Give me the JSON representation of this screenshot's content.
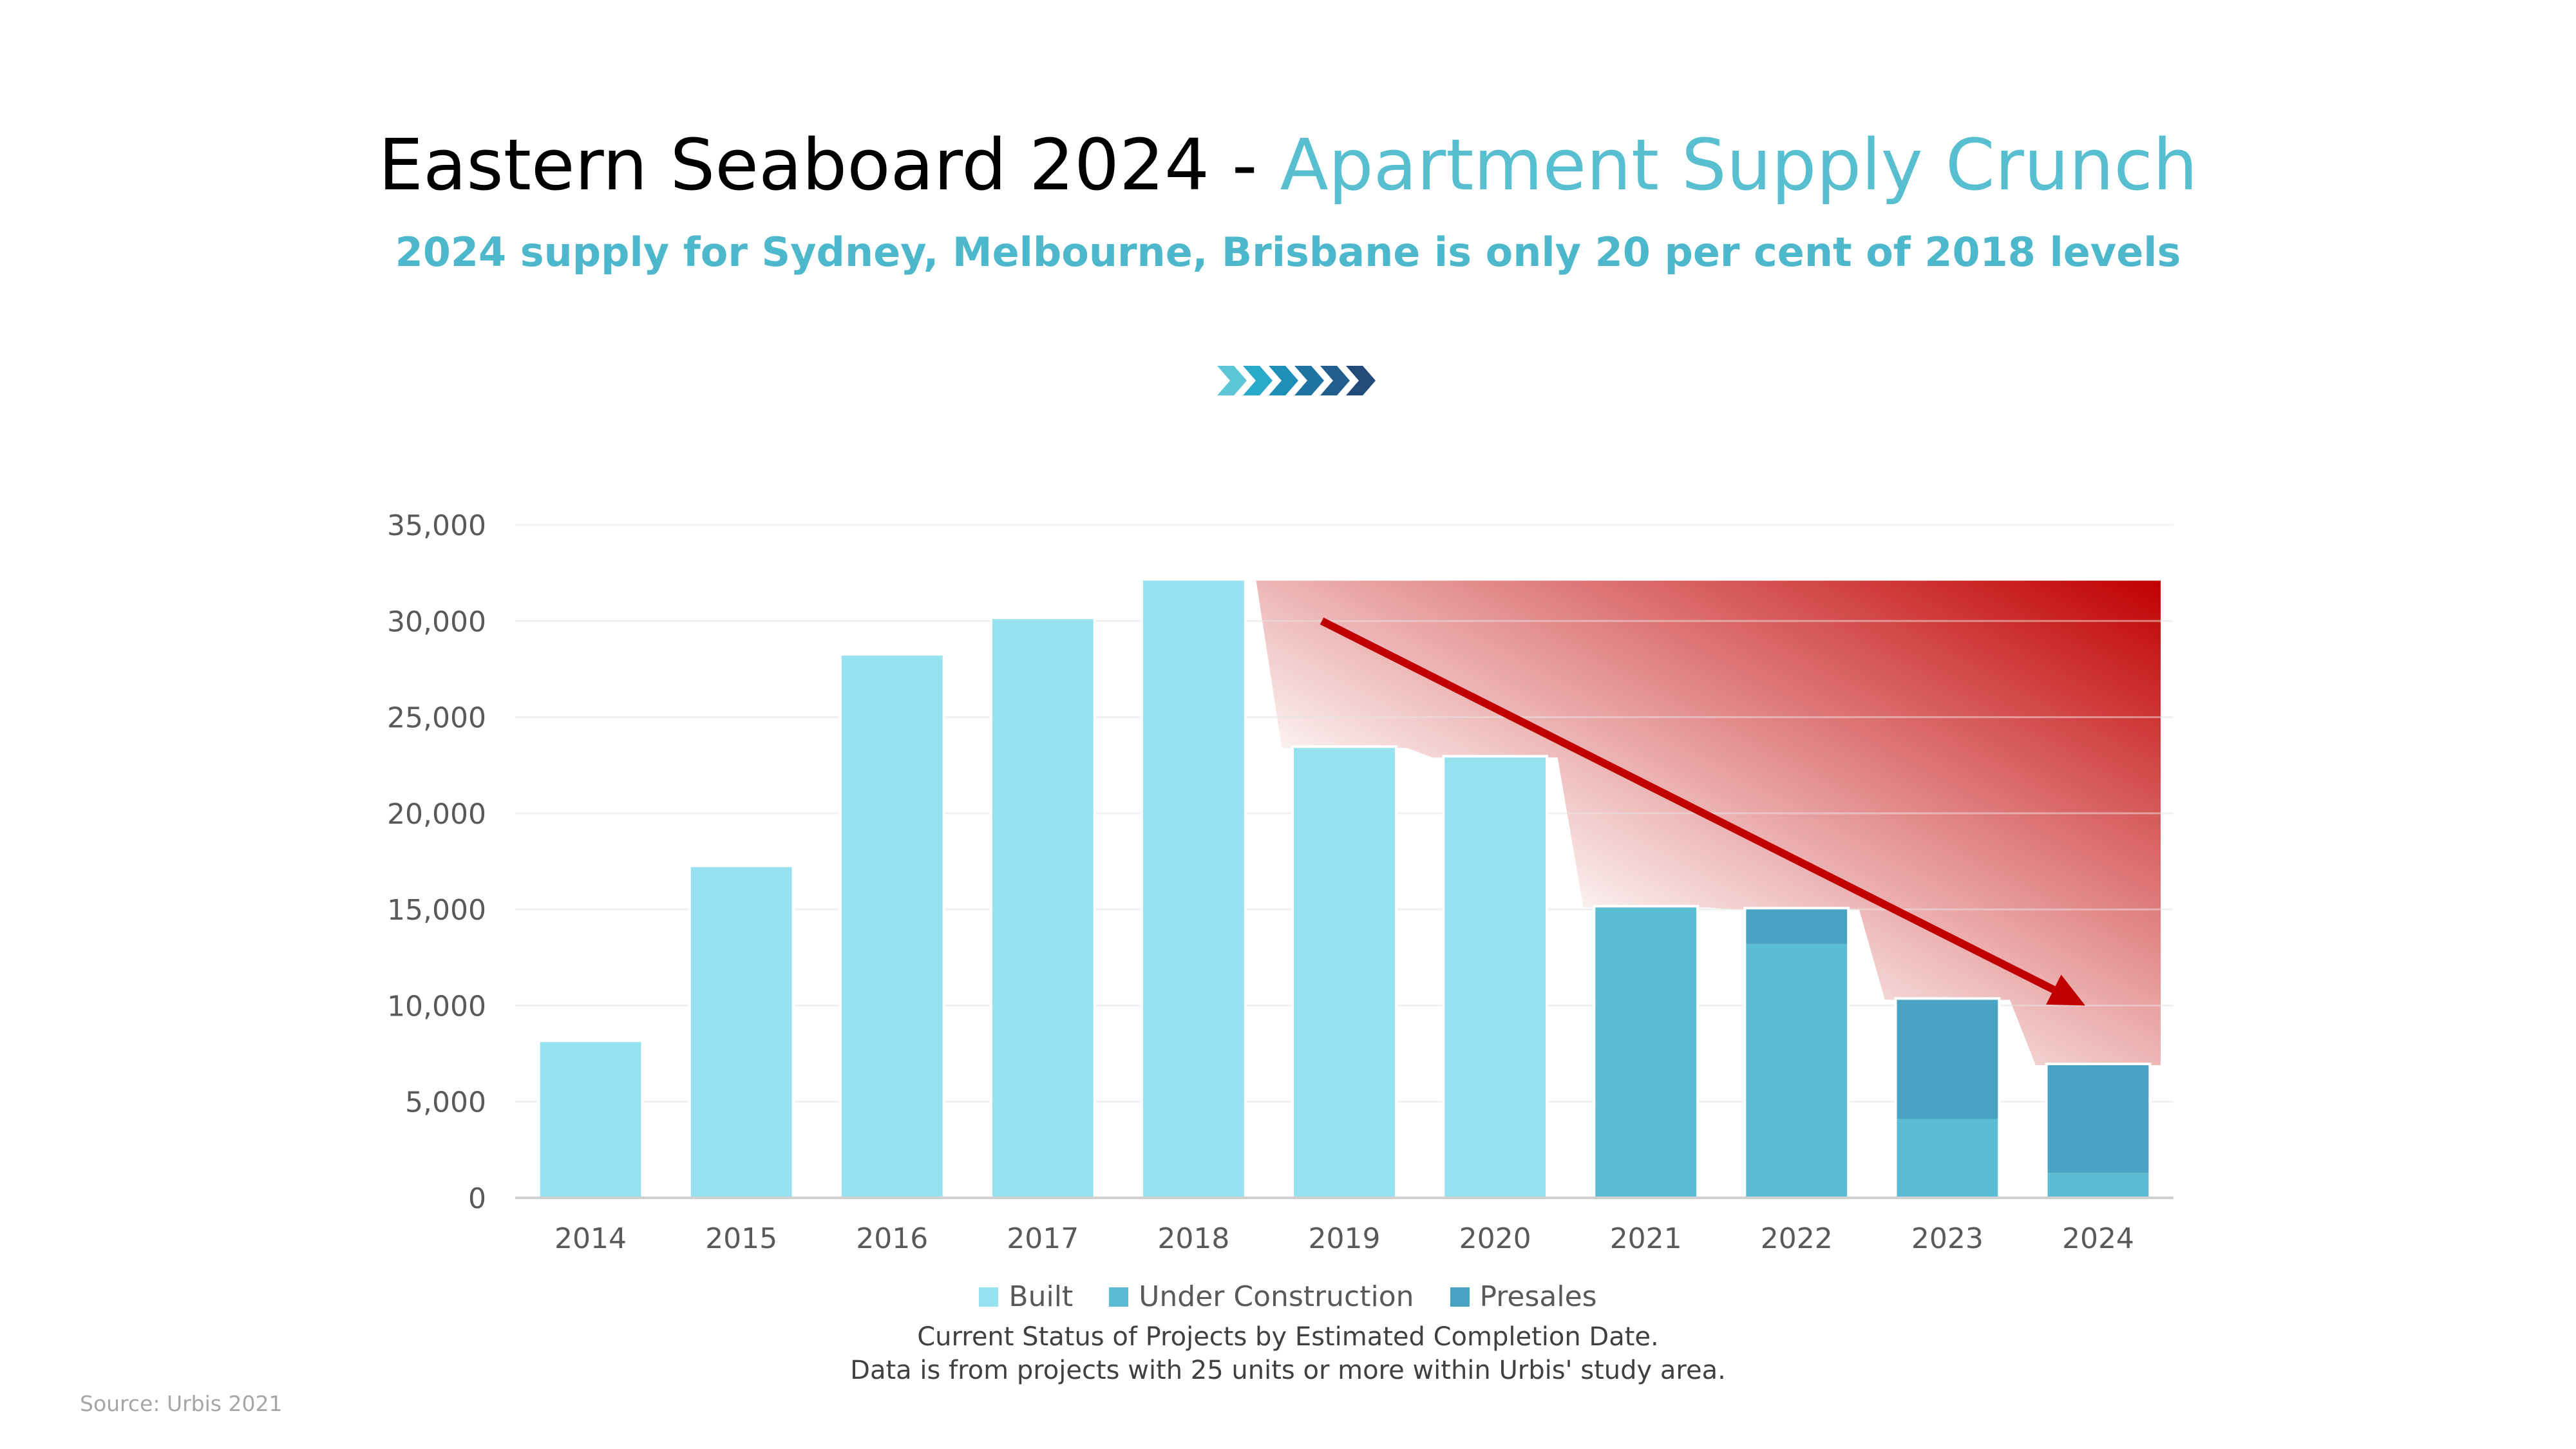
{
  "header": {
    "title_main": "Eastern Seaboard 2024 - ",
    "title_accent": "Apartment Supply Crunch",
    "subtitle": "2024 supply for Sydney, Melbourne, Brisbane is only 20 per cent of 2018 levels"
  },
  "colors": {
    "title_accent": "#57bfd0",
    "built": "#97e2f1",
    "under_construction": "#5bbdd3",
    "presales": "#48a4c2",
    "trend_arrow": "#c00000",
    "gradient_dark": "#c00000",
    "chevrons": [
      "#5cc6d6",
      "#29aacb",
      "#1d8fb8",
      "#1e73a3",
      "#215d8f",
      "#234b7a"
    ]
  },
  "footer": {
    "note_line1": "Current Status of Projects by Estimated Completion Date.",
    "note_line2": "Data is from projects with 25 units or more within Urbis' study area.",
    "source": "Source: Urbis 2021"
  },
  "chart_data": {
    "type": "bar",
    "stacked": true,
    "categories": [
      "2014",
      "2015",
      "2016",
      "2017",
      "2018",
      "2019",
      "2020",
      "2021",
      "2022",
      "2023",
      "2024"
    ],
    "series": [
      {
        "name": "Built",
        "color": "#97e2f1",
        "values": [
          8100,
          17200,
          28200,
          30100,
          32100,
          23400,
          22900,
          0,
          0,
          0,
          0
        ]
      },
      {
        "name": "Under Construction",
        "color": "#5bbdd3",
        "values": [
          0,
          0,
          0,
          0,
          0,
          0,
          0,
          15100,
          13200,
          4100,
          1300
        ]
      },
      {
        "name": "Presales",
        "color": "#48a4c2",
        "values": [
          0,
          0,
          0,
          0,
          0,
          0,
          0,
          0,
          1800,
          6200,
          5600
        ]
      }
    ],
    "ylim": [
      0,
      35000
    ],
    "yticks": [
      0,
      5000,
      10000,
      15000,
      20000,
      25000,
      30000,
      35000
    ],
    "ytick_labels": [
      "0",
      "5,000",
      "10,000",
      "15,000",
      "20,000",
      "25,000",
      "30,000",
      "35,000"
    ],
    "grid": true,
    "legend_position": "bottom",
    "trend_arrow": {
      "from": {
        "x": "2019",
        "y": 30000
      },
      "to": {
        "x": "2024",
        "y": 10000
      }
    }
  }
}
